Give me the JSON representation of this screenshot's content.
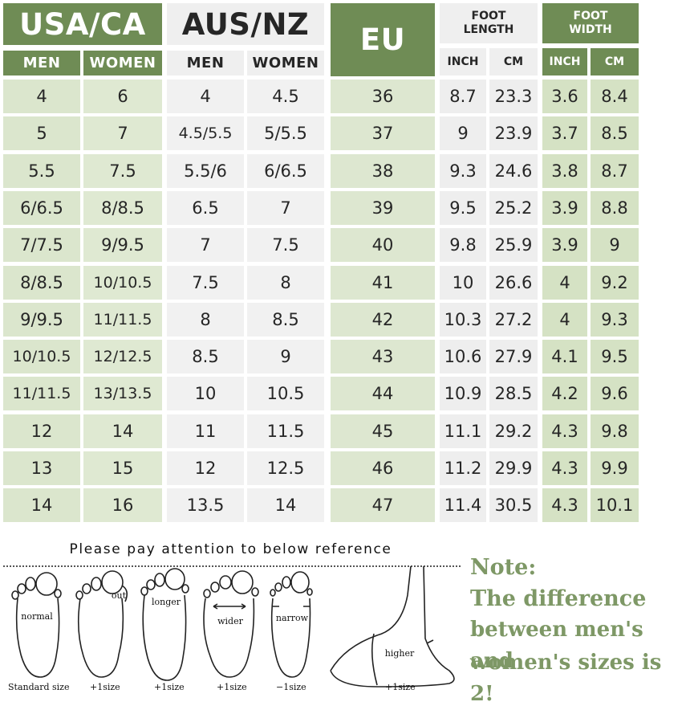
{
  "groups": {
    "usa_ca": "USA/CA",
    "aus_nz": "AUS/NZ",
    "eu": "EU",
    "foot_length": "FOOT LENGTH",
    "foot_width": "FOOT WIDTH"
  },
  "subheaders": [
    "MEN",
    "WOMEN",
    "MEN",
    "WOMEN",
    "INCH",
    "CM",
    "INCH",
    "CM"
  ],
  "rows": [
    [
      "4",
      "6",
      "4",
      "4.5",
      "36",
      "8.7",
      "23.3",
      "3.6",
      "8.4"
    ],
    [
      "5",
      "7",
      "4.5/5.5",
      "5/5.5",
      "37",
      "9",
      "23.9",
      "3.7",
      "8.5"
    ],
    [
      "5.5",
      "7.5",
      "5.5/6",
      "6/6.5",
      "38",
      "9.3",
      "24.6",
      "3.8",
      "8.7"
    ],
    [
      "6/6.5",
      "8/8.5",
      "6.5",
      "7",
      "39",
      "9.5",
      "25.2",
      "3.9",
      "8.8"
    ],
    [
      "7/7.5",
      "9/9.5",
      "7",
      "7.5",
      "40",
      "9.8",
      "25.9",
      "3.9",
      "9"
    ],
    [
      "8/8.5",
      "10/10.5",
      "7.5",
      "8",
      "41",
      "10",
      "26.6",
      "4",
      "9.2"
    ],
    [
      "9/9.5",
      "11/11.5",
      "8",
      "8.5",
      "42",
      "10.3",
      "27.2",
      "4",
      "9.3"
    ],
    [
      "10/10.5",
      "12/12.5",
      "8.5",
      "9",
      "43",
      "10.6",
      "27.9",
      "4.1",
      "9.5"
    ],
    [
      "11/11.5",
      "13/13.5",
      "10",
      "10.5",
      "44",
      "10.9",
      "28.5",
      "4.2",
      "9.6"
    ],
    [
      "12",
      "14",
      "11",
      "11.5",
      "45",
      "11.1",
      "29.2",
      "4.3",
      "9.8"
    ],
    [
      "13",
      "15",
      "12",
      "12.5",
      "46",
      "11.2",
      "29.9",
      "4.3",
      "9.9"
    ],
    [
      "14",
      "16",
      "13.5",
      "14",
      "47",
      "11.4",
      "30.5",
      "4.3",
      "10.1"
    ]
  ],
  "reference": {
    "title": "Please pay attention to below reference",
    "feet": [
      {
        "inner": "normal",
        "caption": "Standard size"
      },
      {
        "inner": "out",
        "caption": "+1size"
      },
      {
        "inner": "longer",
        "caption": "+1size"
      },
      {
        "inner": "wider",
        "caption": "+1size"
      },
      {
        "inner": "narrow",
        "caption": "−1size"
      },
      {
        "inner": "higher",
        "caption": "+1size"
      }
    ]
  },
  "note": {
    "lines": [
      "Note:",
      "The difference",
      "between men's and",
      "women's sizes is 2!"
    ]
  },
  "colors": {
    "header_green": "#6f8c55",
    "cell_green": "#dbe6cd",
    "cell_grey": "#f1f1f1",
    "note_green": "#7e9866"
  }
}
